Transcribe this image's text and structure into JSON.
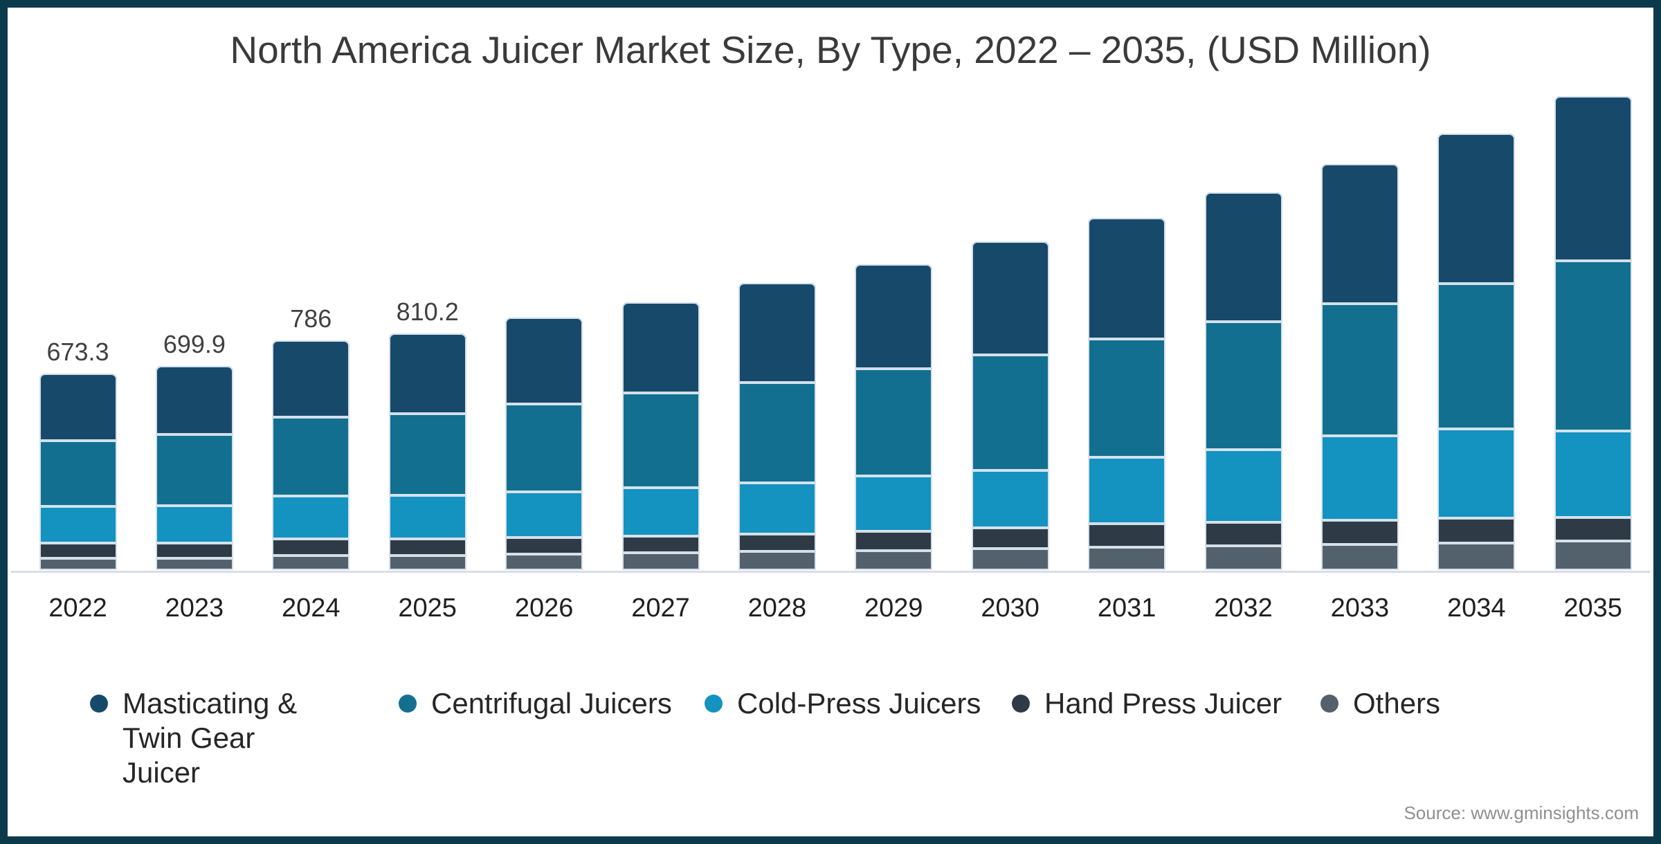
{
  "frame": {
    "border_color": "#0B3A4D",
    "background": "#FFFFFF"
  },
  "title": "North America Juicer Market Size, By Type, 2022 – 2035, (USD Million)",
  "source": "Source: www.gminsights.com",
  "chart_data": {
    "type": "bar",
    "stacked": true,
    "unit": "USD Million",
    "title": "North America Juicer Market Size, By Type, 2022 – 2035, (USD Million)",
    "categories": [
      "2022",
      "2023",
      "2024",
      "2025",
      "2026",
      "2027",
      "2028",
      "2029",
      "2030",
      "2031",
      "2032",
      "2033",
      "2034",
      "2035"
    ],
    "series": [
      {
        "name": "Masticating & Twin Gear Juicer",
        "color": "#17496B",
        "values": [
          230.0,
          236.5,
          262.8,
          274.6,
          296,
          310,
          341,
          358,
          389,
          415,
          443,
          479,
          516,
          564
        ]
      },
      {
        "name": "Centrifugal Juicers",
        "color": "#136F90",
        "values": [
          225.1,
          243.5,
          269.9,
          279.5,
          301,
          325,
          344,
          367,
          396,
          405,
          438,
          452,
          497,
          583
        ]
      },
      {
        "name": "Cold-Press Juicers",
        "color": "#1492C0",
        "values": [
          125.7,
          127.5,
          146.8,
          149.2,
          156,
          166,
          175,
          190,
          197,
          227,
          249,
          289,
          306,
          296
        ]
      },
      {
        "name": "Hand Press Juicer",
        "color": "#2E3B46",
        "values": [
          52.1,
          52.0,
          56.7,
          56.9,
          57,
          57,
          59,
          66,
          71,
          81,
          81,
          83,
          85,
          81
        ]
      },
      {
        "name": "Others",
        "color": "#53616C",
        "values": [
          40.4,
          40.4,
          49.8,
          50.0,
          54,
          59,
          64,
          66,
          73,
          78,
          83,
          88,
          92,
          99
        ]
      }
    ],
    "stack_bottom_to_top": [
      "Others",
      "Hand Press Juicer",
      "Cold-Press Juicers",
      "Centrifugal Juicers",
      "Masticating & Twin Gear Juicer"
    ],
    "totals": [
      673.3,
      699.9,
      786,
      810.2,
      864,
      917,
      983,
      1047,
      1126,
      1206,
      1294,
      1391,
      1496,
      1623
    ],
    "bar_labels": [
      "673.3",
      "699.9",
      "786",
      "810.2",
      "",
      "",
      "",
      "",
      "",
      "",
      "",
      "",
      "",
      ""
    ],
    "xlabel": "",
    "ylabel": "",
    "ylim": [
      0,
      1700
    ],
    "grid": false,
    "y_axis_visible": false,
    "legend_position": "bottom",
    "axis_line_color": "#D9DDE9",
    "segment_stroke_color": "#DEE8F1"
  },
  "legend": {
    "items": [
      {
        "label": "Masticating & Twin Gear Juicer",
        "color": "#17496B"
      },
      {
        "label": "Centrifugal Juicers",
        "color": "#136F90"
      },
      {
        "label": "Cold-Press Juicers",
        "color": "#1492C0"
      },
      {
        "label": "Hand Press Juicer",
        "color": "#2E3B46"
      },
      {
        "label": "Others",
        "color": "#53616C"
      }
    ]
  }
}
